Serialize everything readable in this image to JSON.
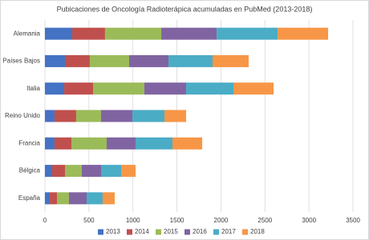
{
  "chart_data": {
    "type": "stacked-bar-horizontal",
    "title": "Pubicaciones de Oncología Radioterápica acumuladas en PubMed (2013-2018)",
    "categories": [
      "Alemania",
      "Países Bajos",
      "Italia",
      "Reino Unido",
      "Francia",
      "Bélgica",
      "España"
    ],
    "series": [
      {
        "name": "2013",
        "color": "#4472c4",
        "values": [
          310,
          228,
          219,
          109,
          109,
          82,
          55
        ]
      },
      {
        "name": "2014",
        "color": "#c0504d",
        "values": [
          373,
          282,
          328,
          246,
          192,
          146,
          82
        ]
      },
      {
        "name": "2015",
        "color": "#9bbb59",
        "values": [
          639,
          447,
          583,
          283,
          401,
          191,
          136
        ]
      },
      {
        "name": "2016",
        "color": "#8064a2",
        "values": [
          629,
          447,
          474,
          356,
          328,
          219,
          201
        ]
      },
      {
        "name": "2017",
        "color": "#4bacc6",
        "values": [
          693,
          501,
          538,
          364,
          419,
          228,
          182
        ]
      },
      {
        "name": "2018",
        "color": "#f79646",
        "values": [
          574,
          410,
          456,
          246,
          338,
          164,
          137
        ]
      }
    ],
    "xlim": [
      0,
      3500
    ],
    "xticks": [
      0,
      500,
      1000,
      1500,
      2000,
      2500,
      3000,
      3500
    ],
    "grid": true,
    "legend": "bottom"
  }
}
